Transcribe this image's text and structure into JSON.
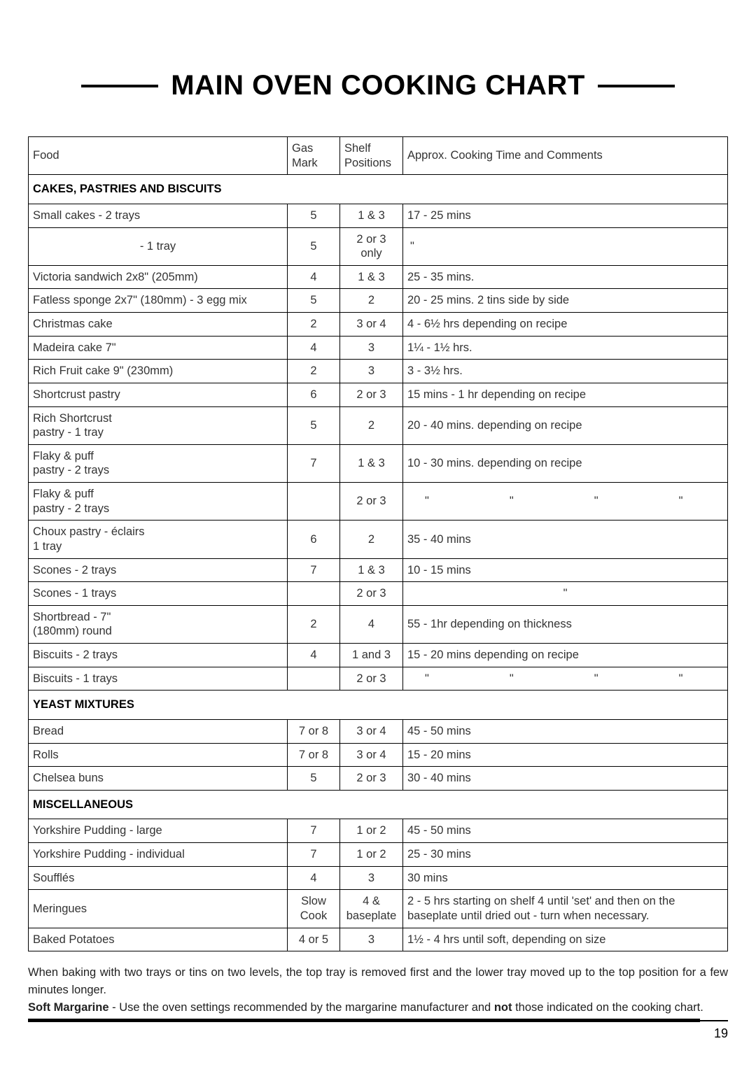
{
  "title": "MAIN OVEN COOKING CHART",
  "columns": {
    "food": "Food",
    "gas": "Gas Mark",
    "shelf": "Shelf Positions",
    "time": "Approx. Cooking Time and Comments"
  },
  "sections": [
    {
      "header": "CAKES, PASTRIES AND BISCUITS",
      "rows": [
        {
          "food": "Small cakes - 2 trays",
          "gas": "5",
          "shelf": "1 & 3",
          "time": "17 - 25 mins"
        },
        {
          "food": " - 1 tray",
          "food_center": true,
          "gas": "5",
          "shelf": "2 or 3 only",
          "time_ditto": "single"
        },
        {
          "food": "Victoria sandwich 2x8\" (205mm)",
          "gas": "4",
          "shelf": "1 & 3",
          "time": "25 - 35 mins."
        },
        {
          "food": "Fatless sponge 2x7\" (180mm) - 3 egg mix",
          "gas": "5",
          "shelf": "2",
          "time": "20 - 25 mins. 2 tins side by side"
        },
        {
          "food": "Christmas cake",
          "gas": "2",
          "shelf": "3 or 4",
          "time": "4 - 6½ hrs depending on recipe"
        },
        {
          "food": "Madeira cake 7\"",
          "gas": "4",
          "shelf": "3",
          "time": "1¼ - 1½ hrs."
        },
        {
          "food": "Rich Fruit cake 9\" (230mm)",
          "gas": "2",
          "shelf": "3",
          "time": "3 - 3½ hrs."
        },
        {
          "food": "Shortcrust pastry",
          "gas": "6",
          "shelf": "2 or 3",
          "time": "15 mins - 1 hr depending on recipe"
        },
        {
          "food": "Rich Shortcrust\npastry - 1 tray",
          "gas": "5",
          "shelf": "2",
          "time": "20 - 40 mins. depending on recipe"
        },
        {
          "food": "Flaky & puff\npastry - 2 trays",
          "gas": "7",
          "shelf": "1 & 3",
          "time": "10 - 30 mins. depending on recipe"
        },
        {
          "food": "Flaky & puff\npastry - 2 trays",
          "gas": "",
          "shelf": "2 or 3",
          "time_ditto": "wide"
        },
        {
          "food": "Choux pastry - éclairs\n1 tray",
          "gas": "6",
          "shelf": "2",
          "time": "35 - 40 mins"
        },
        {
          "food": "Scones - 2 trays",
          "gas": "7",
          "shelf": "1 & 3",
          "time": "10 - 15 mins"
        },
        {
          "food": "Scones - 1 trays",
          "gas": "",
          "shelf": "2 or 3",
          "time_ditto": "single_center"
        },
        {
          "food": "Shortbread - 7\"\n(180mm) round",
          "gas": "2",
          "shelf": "4",
          "time": "55 - 1hr depending on thickness"
        },
        {
          "food": "Biscuits - 2 trays",
          "gas": "4",
          "shelf": "1 and 3",
          "time": "15 - 20 mins depending on recipe"
        },
        {
          "food": "Biscuits - 1 trays",
          "gas": "",
          "shelf": "2 or 3",
          "time_ditto": "wide"
        }
      ]
    },
    {
      "header": "YEAST MIXTURES",
      "rows": [
        {
          "food": "Bread",
          "gas": "7 or 8",
          "shelf": "3 or 4",
          "time": "45 - 50 mins"
        },
        {
          "food": "Rolls",
          "gas": "7 or 8",
          "shelf": "3 or 4",
          "time": "15 - 20 mins"
        },
        {
          "food": "Chelsea buns",
          "gas": "5",
          "shelf": "2 or 3",
          "time": "30 - 40 mins"
        }
      ]
    },
    {
      "header": "MISCELLANEOUS",
      "rows": [
        {
          "food": "Yorkshire Pudding - large",
          "gas": "7",
          "shelf": "1 or 2",
          "time": "45 - 50 mins"
        },
        {
          "food": "Yorkshire Pudding - individual",
          "gas": "7",
          "shelf": "1 or 2",
          "time": "25 - 30 mins"
        },
        {
          "food": "Soufflés",
          "gas": "4",
          "shelf": "3",
          "time": "30 mins"
        },
        {
          "food": "Meringues",
          "gas": "Slow Cook",
          "shelf": "4 & baseplate",
          "time": "2 - 5 hrs starting on shelf 4 until 'set' and then on the baseplate until dried out - turn when necessary."
        },
        {
          "food": "Baked Potatoes",
          "gas": "4 or 5",
          "shelf": "3",
          "time": "1½ - 4 hrs until soft, depending on size"
        }
      ]
    }
  ],
  "notes": {
    "p1": "When baking with two trays or tins on two levels, the top tray is removed first and the lower tray moved up to the top position for a few minutes longer.",
    "p2_bold1": "Soft Margarine",
    "p2_mid": " - Use the oven settings recommended by the margarine manufacturer and ",
    "p2_bold2": "not",
    "p2_end": " those indicated on the cooking chart."
  },
  "page_number": "19"
}
